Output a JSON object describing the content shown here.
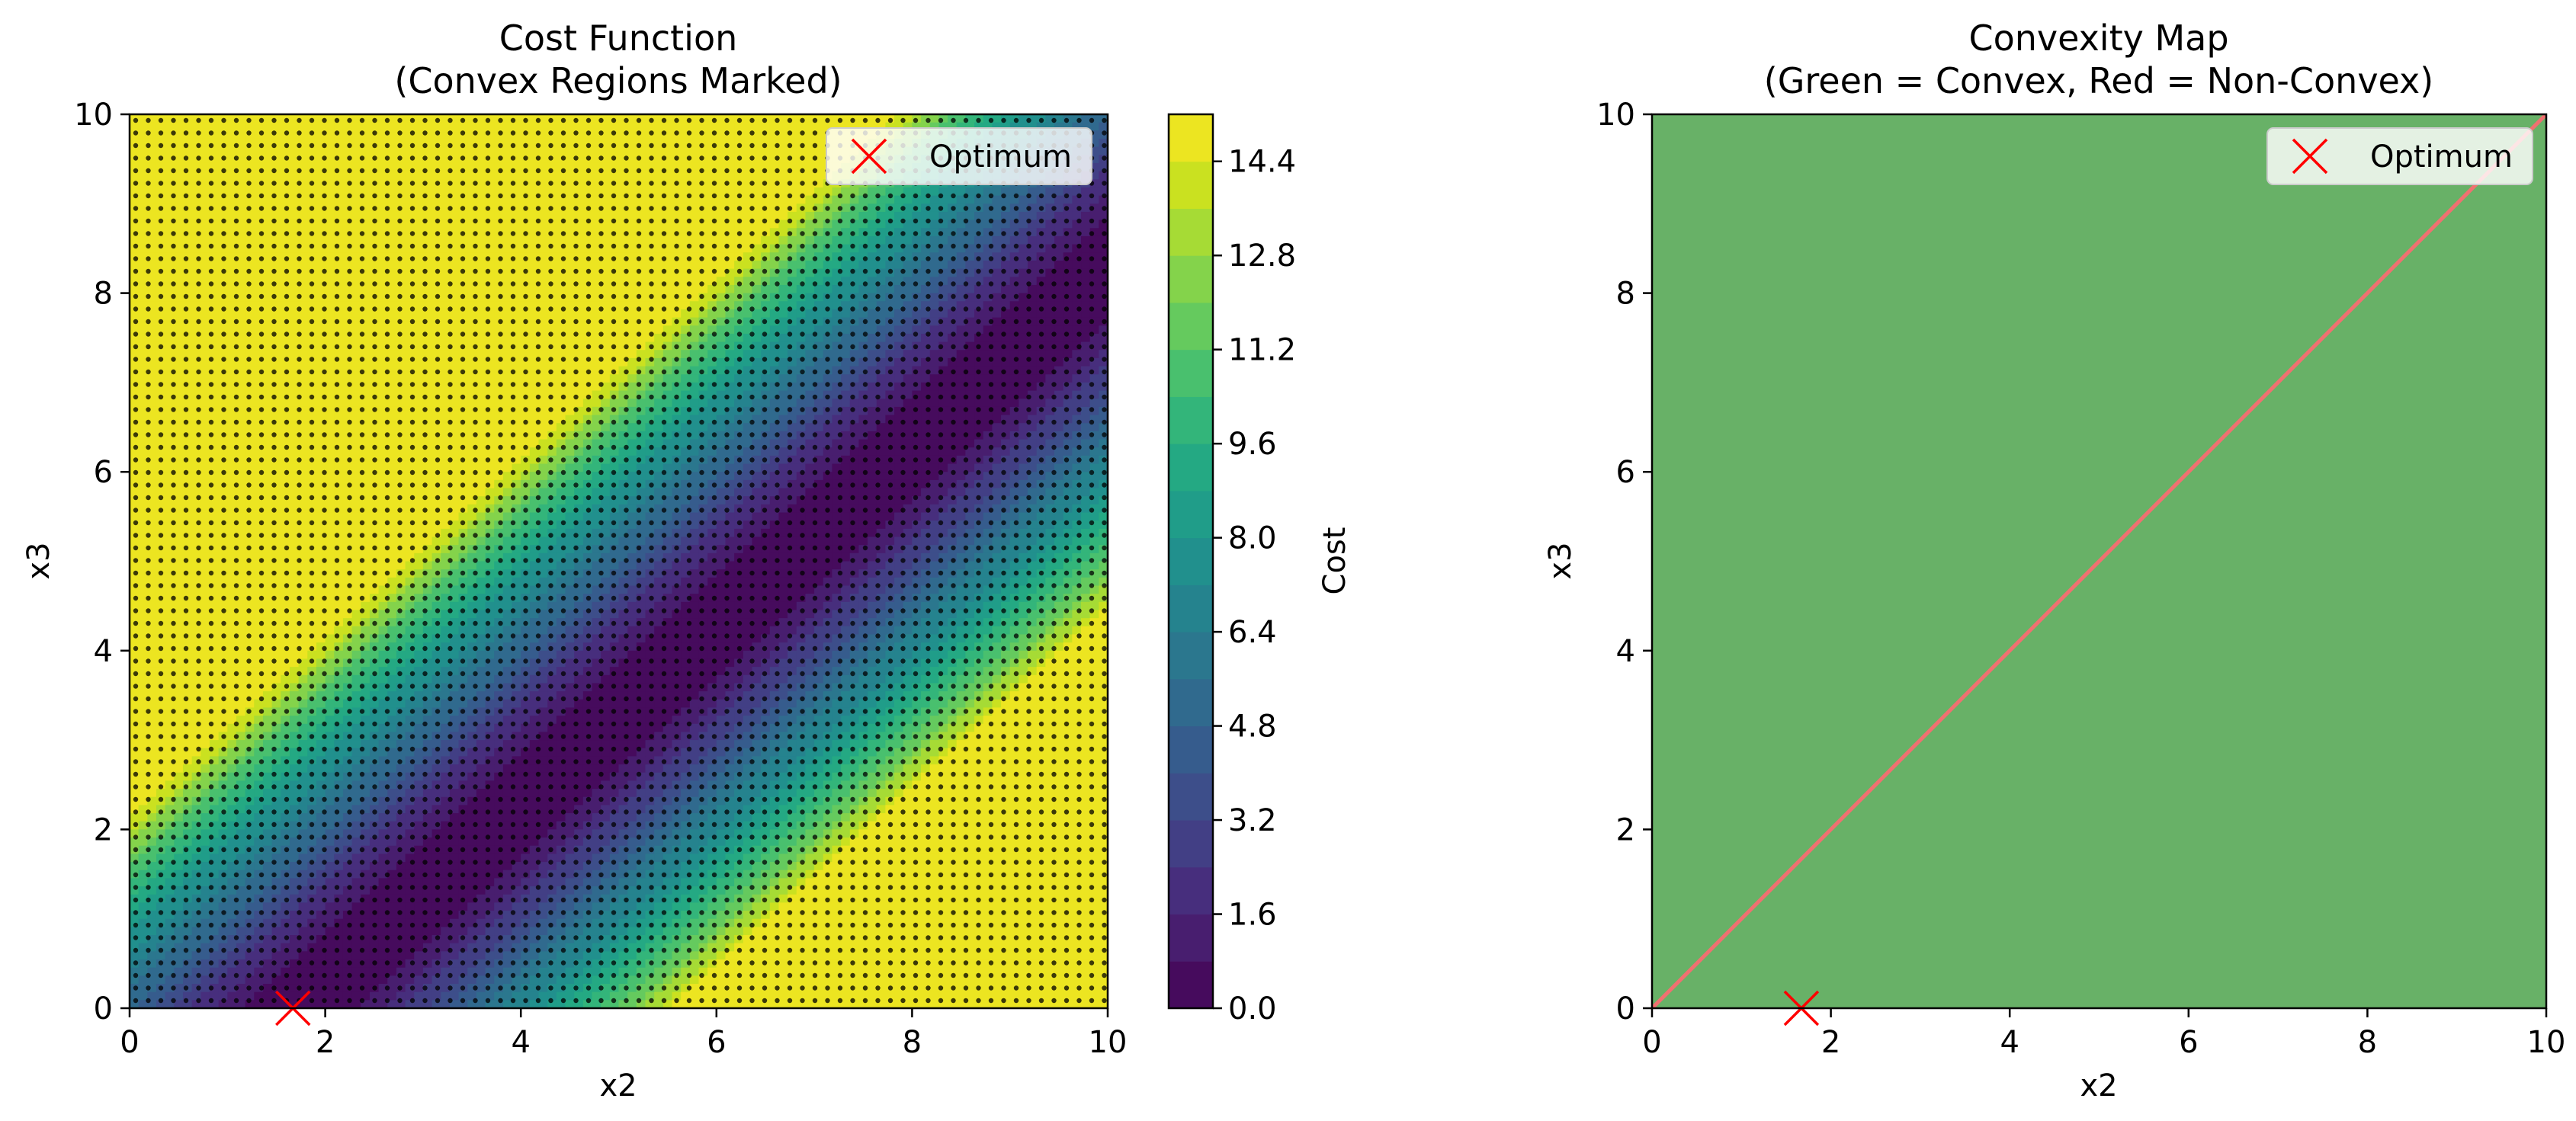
{
  "colors": {
    "viridis": [
      "#440154",
      "#481a6c",
      "#472f7d",
      "#414487",
      "#39568c",
      "#31688e",
      "#2a788e",
      "#23888e",
      "#1f988b",
      "#22a884",
      "#35b779",
      "#54c568",
      "#7ad151",
      "#a5db36",
      "#d2e21b",
      "#fde725"
    ],
    "convex": "#68b167",
    "boundary": "#f07070",
    "optimum": "#ff0000"
  },
  "chart_data": [
    {
      "type": "heatmap",
      "title_line1": "Cost Function",
      "title_line2": "(Convex Regions Marked)",
      "xlabel": "x2",
      "ylabel": "x3",
      "xlim": [
        0,
        10
      ],
      "ylim": [
        0,
        10
      ],
      "xticks": [
        "0",
        "2",
        "4",
        "6",
        "8",
        "10"
      ],
      "yticks": [
        "0",
        "2",
        "4",
        "6",
        "8",
        "10"
      ],
      "surface": "cost = (x2 - x3 - 1.7)^2 + 2*sin^2(0.8*(x2 - x3 - 1.7)), filled contours, dotted convex markers",
      "colorbar": {
        "label": "Cost",
        "min": 0.0,
        "max": 15.2,
        "levels": 19,
        "ticks": [
          "0.0",
          "1.6",
          "3.2",
          "4.8",
          "6.4",
          "8.0",
          "9.6",
          "11.2",
          "12.8",
          "14.4"
        ]
      },
      "optimum": {
        "x2": 1.67,
        "x3": 0.0
      },
      "legend": {
        "label": "Optimum",
        "placement": "upper right"
      }
    },
    {
      "type": "heatmap",
      "title_line1": "Convexity Map",
      "title_line2": "(Green = Convex, Red = Non-Convex)",
      "xlabel": "x2",
      "ylabel": "x3",
      "xlim": [
        0,
        10
      ],
      "ylim": [
        0,
        10
      ],
      "xticks": [
        "0",
        "2",
        "4",
        "6",
        "8",
        "10"
      ],
      "yticks": [
        "0",
        "2",
        "4",
        "6",
        "8",
        "10"
      ],
      "regions": "entire domain convex (green); non-convex boundary line along x3 = x2",
      "boundary_line": [
        [
          0,
          0
        ],
        [
          10,
          10
        ]
      ],
      "optimum": {
        "x2": 1.67,
        "x3": 0.0
      },
      "legend": {
        "label": "Optimum",
        "placement": "upper right"
      }
    }
  ]
}
